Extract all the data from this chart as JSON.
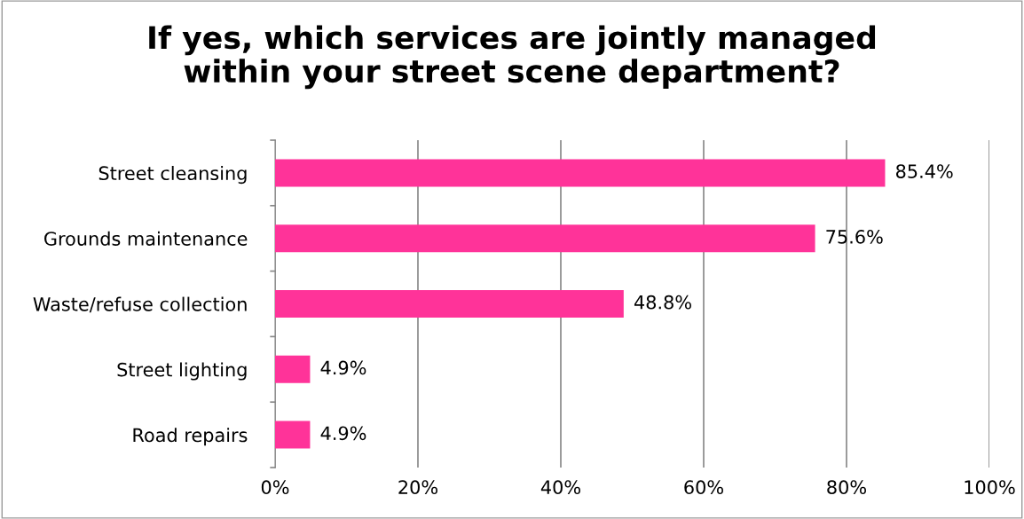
{
  "chart_data": {
    "type": "bar",
    "orientation": "horizontal",
    "title": "If yes, which services are jointly managed\nwithin your street scene department?",
    "categories": [
      "Street cleansing",
      "Grounds maintenance",
      "Waste/refuse collection",
      "Street lighting",
      "Road repairs"
    ],
    "values": [
      85.4,
      75.6,
      48.8,
      4.9,
      4.9
    ],
    "value_labels": [
      "85.4%",
      "75.6%",
      "48.8%",
      "4.9%",
      "4.9%"
    ],
    "color": "#ff3399",
    "xlim": [
      0,
      100
    ],
    "xticks": [
      {
        "value": 0,
        "label": "0%"
      },
      {
        "value": 20,
        "label": "20%"
      },
      {
        "value": 40,
        "label": "40%"
      },
      {
        "value": 60,
        "label": "60%"
      },
      {
        "value": 80,
        "label": "80%"
      },
      {
        "value": 100,
        "label": "100%"
      }
    ],
    "grid": "x",
    "legend": false
  }
}
